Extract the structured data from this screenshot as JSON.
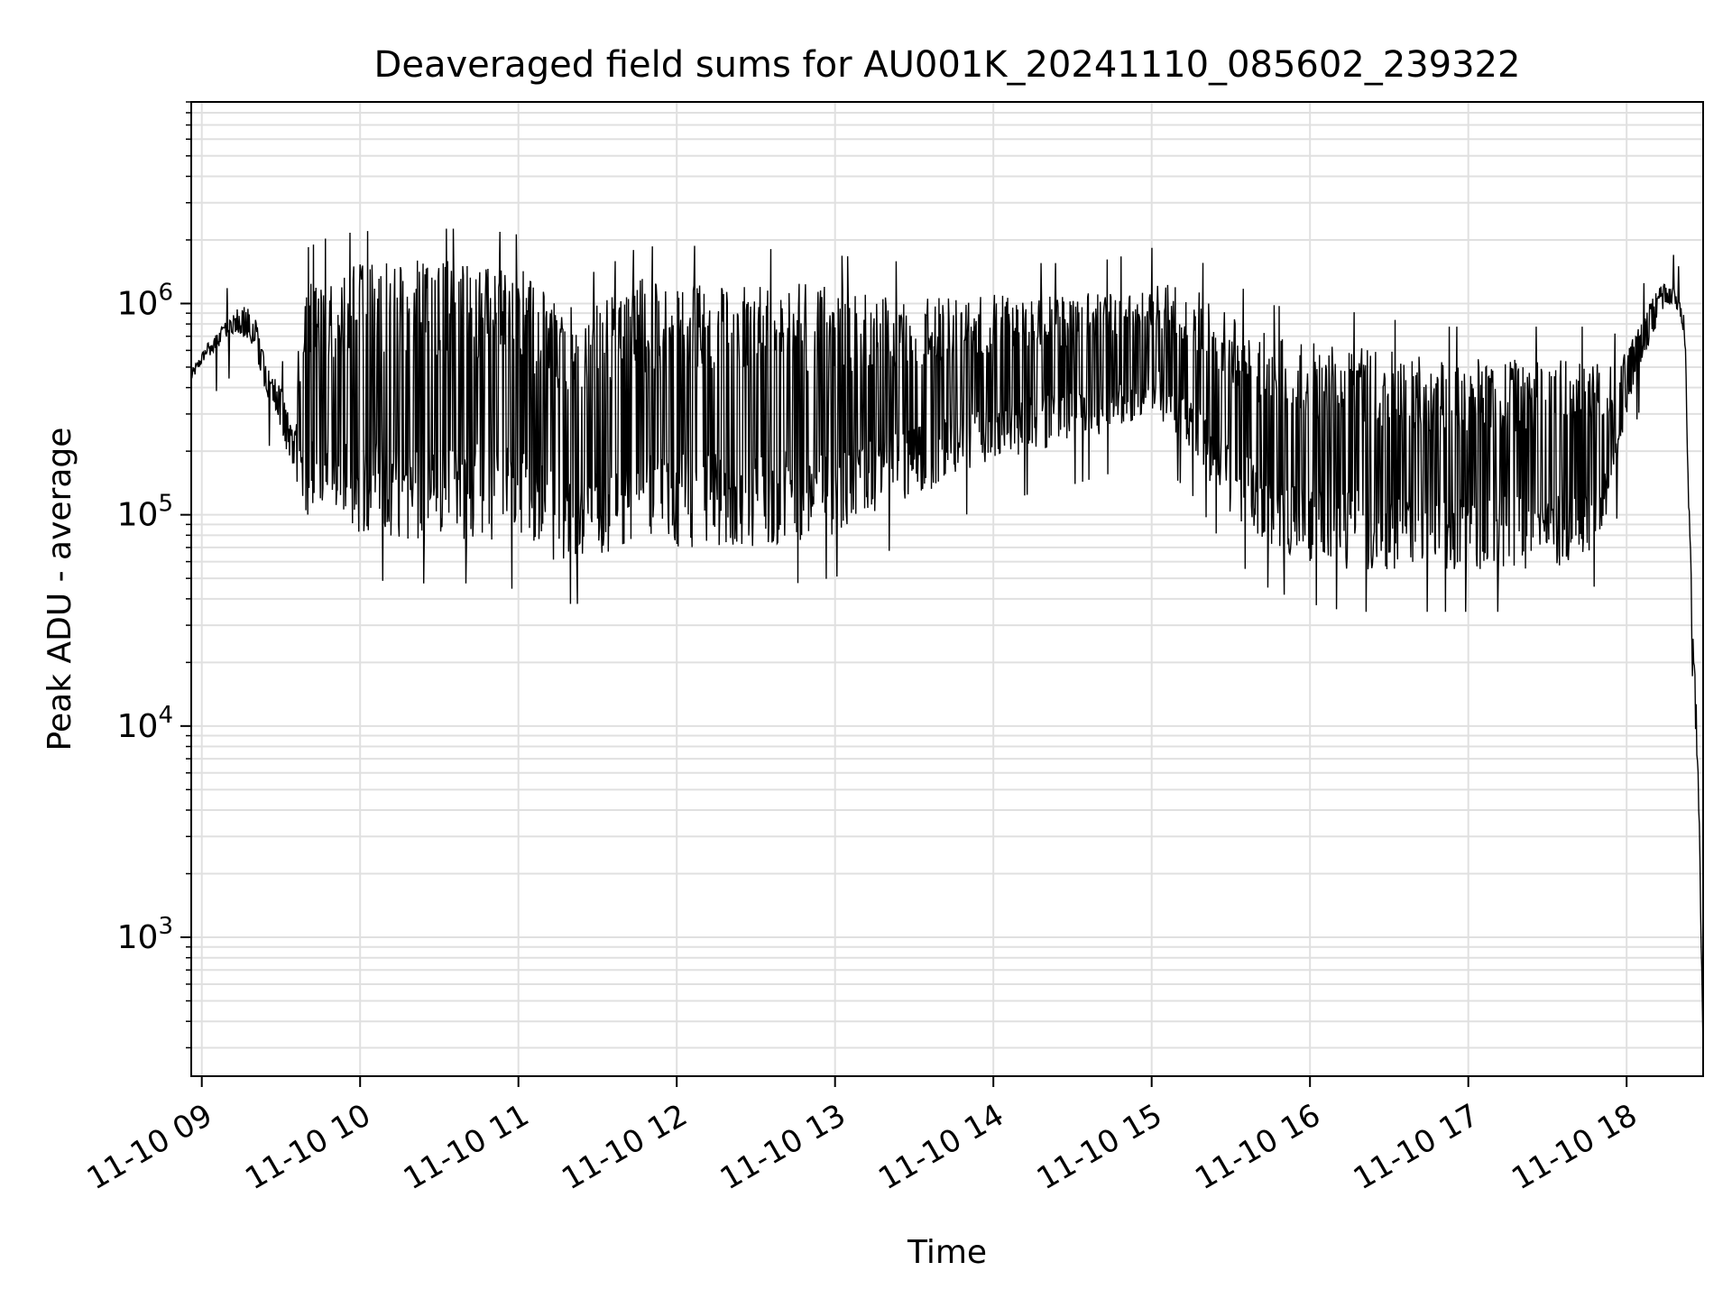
{
  "chart_data": {
    "type": "line",
    "title": "Deaveraged field sums for AU001K_20241110_085602_239322",
    "xlabel": "Time",
    "ylabel": "Peak ADU - average",
    "yscale": "log",
    "ylim": [
      220,
      9000000
    ],
    "xlim": [
      "2024-11-10 08:56:00",
      "2024-11-10 18:29:00"
    ],
    "grid": true,
    "line_color": "#000000",
    "grid_color": "#e0e0e0",
    "x_ticks": [
      {
        "label": "11-10 09",
        "time": "2024-11-10 09:00"
      },
      {
        "label": "11-10 10",
        "time": "2024-11-10 10:00"
      },
      {
        "label": "11-10 11",
        "time": "2024-11-10 11:00"
      },
      {
        "label": "11-10 12",
        "time": "2024-11-10 12:00"
      },
      {
        "label": "11-10 13",
        "time": "2024-11-10 13:00"
      },
      {
        "label": "11-10 14",
        "time": "2024-11-10 14:00"
      },
      {
        "label": "11-10 15",
        "time": "2024-11-10 15:00"
      },
      {
        "label": "11-10 16",
        "time": "2024-11-10 16:00"
      },
      {
        "label": "11-10 17",
        "time": "2024-11-10 17:00"
      },
      {
        "label": "11-10 18",
        "time": "2024-11-10 18:00"
      }
    ],
    "y_ticks": [
      {
        "base": "10",
        "exp": "3",
        "value": 1000
      },
      {
        "base": "10",
        "exp": "4",
        "value": 10000
      },
      {
        "base": "10",
        "exp": "5",
        "value": 100000
      },
      {
        "base": "10",
        "exp": "6",
        "value": 1000000
      }
    ],
    "series": [
      {
        "style": "rapid oscillation between an upper envelope and a lower envelope (approximate values)",
        "x": [
          "2024-11-10 08:56",
          "2024-11-10 09:05",
          "2024-11-10 09:10",
          "2024-11-10 09:15",
          "2024-11-10 09:20",
          "2024-11-10 09:25",
          "2024-11-10 09:30",
          "2024-11-10 09:35",
          "2024-11-10 09:40",
          "2024-11-10 09:45",
          "2024-11-10 09:50",
          "2024-11-10 10:00",
          "2024-11-10 10:15",
          "2024-11-10 10:30",
          "2024-11-10 10:45",
          "2024-11-10 11:00",
          "2024-11-10 11:15",
          "2024-11-10 11:30",
          "2024-11-10 11:45",
          "2024-11-10 12:00",
          "2024-11-10 12:15",
          "2024-11-10 12:30",
          "2024-11-10 12:45",
          "2024-11-10 13:00",
          "2024-11-10 13:15",
          "2024-11-10 13:30",
          "2024-11-10 13:45",
          "2024-11-10 14:00",
          "2024-11-10 14:15",
          "2024-11-10 14:30",
          "2024-11-10 14:45",
          "2024-11-10 15:00",
          "2024-11-10 15:15",
          "2024-11-10 15:30",
          "2024-11-10 15:45",
          "2024-11-10 16:00",
          "2024-11-10 16:15",
          "2024-11-10 16:30",
          "2024-11-10 16:45",
          "2024-11-10 17:00",
          "2024-11-10 17:15",
          "2024-11-10 17:30",
          "2024-11-10 17:45",
          "2024-11-10 17:55",
          "2024-11-10 18:00",
          "2024-11-10 18:05",
          "2024-11-10 18:10",
          "2024-11-10 18:14",
          "2024-11-10 18:18",
          "2024-11-10 18:22",
          "2024-11-10 18:25",
          "2024-11-10 18:27",
          "2024-11-10 18:29"
        ],
        "upper": [
          450000,
          700000,
          850000,
          1000000,
          900000,
          500000,
          400000,
          250000,
          1300000,
          1400000,
          1500000,
          1550000,
          1600000,
          1600000,
          1600000,
          1500000,
          1000000,
          1000000,
          1300000,
          1350000,
          1300000,
          1300000,
          1250000,
          1200000,
          1150000,
          1100000,
          1100000,
          1100000,
          1100000,
          1100000,
          1150000,
          1300000,
          1200000,
          900000,
          700000,
          650000,
          650000,
          600000,
          550000,
          550000,
          550000,
          550000,
          550000,
          500000,
          600000,
          800000,
          1100000,
          1250000,
          1200000,
          900000,
          30000,
          10000,
          300
        ],
        "lower": [
          450000,
          600000,
          700000,
          700000,
          600000,
          350000,
          250000,
          150000,
          100000,
          90000,
          85000,
          80000,
          75000,
          75000,
          75000,
          70000,
          60000,
          60000,
          70000,
          70000,
          70000,
          70000,
          75000,
          80000,
          100000,
          120000,
          150000,
          180000,
          200000,
          220000,
          250000,
          300000,
          200000,
          100000,
          70000,
          60000,
          55000,
          55000,
          55000,
          55000,
          55000,
          55000,
          60000,
          120000,
          300000,
          500000,
          700000,
          900000,
          1000000,
          700000,
          15000,
          6000,
          300
        ]
      }
    ]
  }
}
